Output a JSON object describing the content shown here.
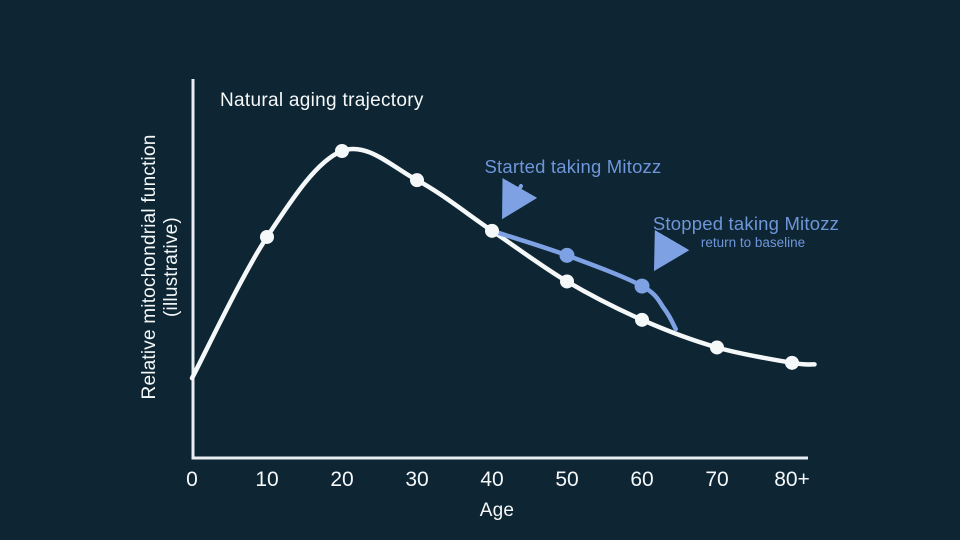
{
  "title": "Natural aging trajectory",
  "colors": {
    "background": "#0e2533",
    "curve": "#f5f8f9",
    "accent": "#7ea1e4",
    "accent_text": "#6e96d9",
    "axis": "#e8eef1",
    "text": "#f5f8f9"
  },
  "x_axis": {
    "title": "Age"
  },
  "y_axis": {
    "title_line1": "Relative mitochondrial function",
    "title_line2": "(illustrative)"
  },
  "annotations": {
    "started": {
      "label": "Started taking Mitozz"
    },
    "stopped": {
      "label": "Stopped taking Mitozz",
      "sublabel": "return to baseline"
    }
  },
  "chart_data": {
    "type": "line",
    "title": "Natural aging trajectory",
    "xlabel": "Age",
    "ylabel": "Relative mitochondrial function (illustrative)",
    "x_ticks": [
      0,
      10,
      20,
      30,
      40,
      50,
      60,
      70,
      80
    ],
    "x_tick_labels": [
      "0",
      "10",
      "20",
      "30",
      "40",
      "50",
      "60",
      "70",
      "80+"
    ],
    "xlim": [
      0,
      88
    ],
    "ylim": [
      0,
      125
    ],
    "grid": false,
    "legend": "none",
    "series": [
      {
        "name": "Natural aging trajectory",
        "role": "baseline",
        "color_key": "curve",
        "x": [
          0,
          10,
          20,
          30,
          40,
          50,
          60,
          70,
          80,
          83
        ],
        "y": [
          26,
          72,
          100,
          90.5,
          74,
          57.5,
          45,
          36,
          31,
          30.5
        ],
        "marker_x": [
          10,
          20,
          30,
          40,
          50,
          60,
          70,
          80
        ]
      },
      {
        "name": "Taking Mitozz (started age 40, stopped age 60)",
        "role": "intervention",
        "color_key": "accent",
        "x": [
          40,
          50,
          60,
          63,
          64.5
        ],
        "y": [
          74,
          66,
          56,
          48.5,
          42
        ],
        "marker_x": [
          50,
          60
        ]
      }
    ],
    "annotations": [
      {
        "text": "Started taking Mitozz",
        "points_to": {
          "x": 40,
          "y": 74
        }
      },
      {
        "text": "Stopped taking Mitozz",
        "subtext": "return to baseline",
        "points_to": {
          "x": 60,
          "y": 56
        }
      }
    ]
  }
}
